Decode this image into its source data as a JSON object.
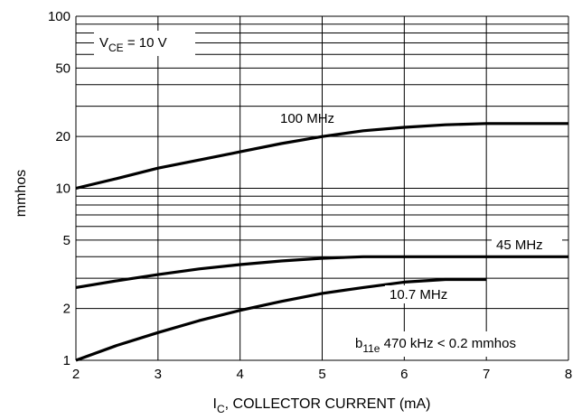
{
  "chart_data": {
    "type": "line",
    "x_scale": "linear",
    "y_scale": "log",
    "xlim": [
      2,
      8
    ],
    "ylim": [
      1,
      100
    ],
    "grid": true,
    "xlabel": {
      "main": "I",
      "sub": "C",
      "rest": ", COLLECTOR CURRENT (mA)"
    },
    "ylabel": "mmhos",
    "x_ticks": [
      "2",
      "3",
      "4",
      "5",
      "6",
      "7",
      "8"
    ],
    "y_ticks": [
      "1",
      "2",
      "5",
      "10",
      "20",
      "50",
      "100"
    ],
    "annotations": {
      "condition": {
        "main": "V",
        "sub": "CE",
        "rest": " = 10 V"
      },
      "note": {
        "main": "b",
        "sub": "11e",
        "rest": " 470 kHz < 0.2 mmhos"
      }
    },
    "series": [
      {
        "name": "100 MHz",
        "x": [
          2,
          2.5,
          3,
          3.5,
          4,
          4.5,
          5,
          5.5,
          6,
          6.5,
          7,
          8
        ],
        "values": [
          10,
          11.4,
          13.1,
          14.6,
          16.3,
          18.2,
          20.0,
          21.6,
          22.6,
          23.4,
          23.8,
          23.8
        ]
      },
      {
        "name": "45 MHz",
        "x": [
          2,
          2.5,
          3,
          3.5,
          4,
          4.5,
          5,
          5.5,
          6,
          7,
          8
        ],
        "values": [
          2.65,
          2.9,
          3.15,
          3.4,
          3.6,
          3.78,
          3.92,
          4.0,
          4.0,
          4.0,
          4.0
        ]
      },
      {
        "name": "10.7 MHz",
        "x": [
          2,
          2.5,
          3,
          3.5,
          4,
          4.5,
          5,
          5.5,
          6,
          6.5,
          7
        ],
        "values": [
          1.0,
          1.22,
          1.45,
          1.7,
          1.95,
          2.2,
          2.45,
          2.65,
          2.85,
          2.95,
          2.95
        ]
      }
    ]
  }
}
